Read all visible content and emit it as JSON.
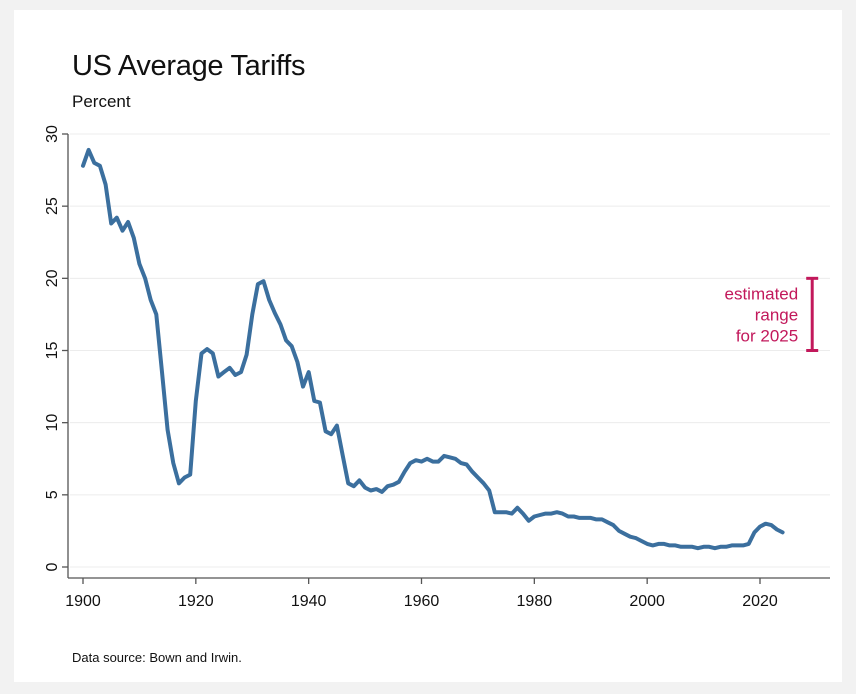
{
  "colors": {
    "background": "#ffffff",
    "line": "#3b6f9e",
    "annotation": "#c2185b",
    "grid": "#ececec",
    "axis": "#555555"
  },
  "chart_data": {
    "type": "line",
    "title": "US Average Tariffs",
    "subtitle": "Percent",
    "source": "Data source: Bown and Irwin.",
    "xlabel": "",
    "ylabel": "",
    "xlim": [
      1900,
      2032
    ],
    "ylim": [
      0,
      30
    ],
    "x_ticks": [
      1900,
      1920,
      1940,
      1960,
      1980,
      2000,
      2020
    ],
    "y_ticks": [
      0,
      5,
      10,
      15,
      20,
      25,
      30
    ],
    "grid": true,
    "series": [
      {
        "x": [
          1900,
          1901,
          1902,
          1903,
          1904,
          1905,
          1906,
          1907,
          1908,
          1909,
          1910,
          1911,
          1912,
          1913,
          1914,
          1915,
          1916,
          1917,
          1918,
          1919,
          1920,
          1921,
          1922,
          1923,
          1924,
          1925,
          1926,
          1927,
          1928,
          1929,
          1930,
          1931,
          1932,
          1933,
          1934,
          1935,
          1936,
          1937,
          1938,
          1939,
          1940,
          1941,
          1942,
          1943,
          1944,
          1945,
          1946,
          1947,
          1948,
          1949,
          1950,
          1951,
          1952,
          1953,
          1954,
          1955,
          1956,
          1957,
          1958,
          1959,
          1960,
          1961,
          1962,
          1963,
          1964,
          1965,
          1966,
          1967,
          1968,
          1969,
          1970,
          1971,
          1972,
          1973,
          1974,
          1975,
          1976,
          1977,
          1978,
          1979,
          1980,
          1981,
          1982,
          1983,
          1984,
          1985,
          1986,
          1987,
          1988,
          1989,
          1990,
          1991,
          1992,
          1993,
          1994,
          1995,
          1996,
          1997,
          1998,
          1999,
          2000,
          2001,
          2002,
          2003,
          2004,
          2005,
          2006,
          2007,
          2008,
          2009,
          2010,
          2011,
          2012,
          2013,
          2014,
          2015,
          2016,
          2017,
          2018,
          2019,
          2020,
          2021,
          2022,
          2023,
          2024
        ],
        "values": [
          27.8,
          28.9,
          28.0,
          27.8,
          26.5,
          23.8,
          24.2,
          23.3,
          23.9,
          22.8,
          21.0,
          20.0,
          18.5,
          17.5,
          13.5,
          9.5,
          7.2,
          5.8,
          6.2,
          6.4,
          11.5,
          14.8,
          15.1,
          14.8,
          13.2,
          13.5,
          13.8,
          13.3,
          13.5,
          14.7,
          17.5,
          19.6,
          19.8,
          18.5,
          17.6,
          16.8,
          15.7,
          15.3,
          14.2,
          12.5,
          13.5,
          11.5,
          11.4,
          9.4,
          9.2,
          9.8,
          7.8,
          5.8,
          5.6,
          6.0,
          5.5,
          5.3,
          5.4,
          5.2,
          5.6,
          5.7,
          5.9,
          6.6,
          7.2,
          7.4,
          7.3,
          7.5,
          7.3,
          7.3,
          7.7,
          7.6,
          7.5,
          7.2,
          7.1,
          6.6,
          6.2,
          5.8,
          5.3,
          3.8,
          3.8,
          3.8,
          3.7,
          4.1,
          3.7,
          3.2,
          3.5,
          3.6,
          3.7,
          3.7,
          3.8,
          3.7,
          3.5,
          3.5,
          3.4,
          3.4,
          3.4,
          3.3,
          3.3,
          3.1,
          2.9,
          2.5,
          2.3,
          2.1,
          2.0,
          1.8,
          1.6,
          1.5,
          1.6,
          1.6,
          1.5,
          1.5,
          1.4,
          1.4,
          1.4,
          1.3,
          1.4,
          1.4,
          1.3,
          1.4,
          1.4,
          1.5,
          1.5,
          1.5,
          1.6,
          2.4,
          2.8,
          3.0,
          2.9,
          2.6,
          2.4
        ]
      }
    ],
    "annotation": {
      "lines": [
        "estimated",
        "range",
        "for 2025"
      ],
      "range_low": 15,
      "range_high": 20,
      "x": 2025
    }
  }
}
